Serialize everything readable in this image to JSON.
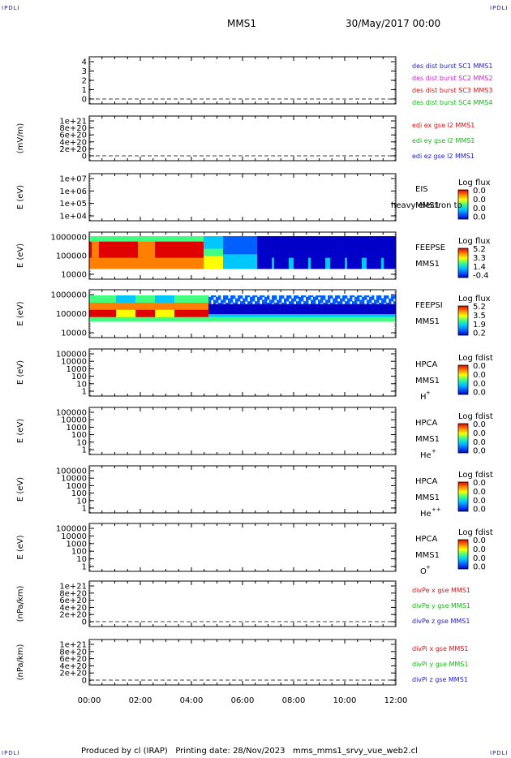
{
  "corner_tl": "IPDLI",
  "corner_tr": "IPDLI",
  "corner_bl": "IPDLI",
  "corner_br": "IPDLI",
  "header": {
    "title": "MMS1",
    "date": "30/May/2017 00:00"
  },
  "footer": "Produced by cl (IRAP)   Printing date: 28/Nov/2023   mms_mms1_srvy_vue_web2.cl",
  "colors": {
    "blue": "#1c1ccc",
    "magenta": "#cc22cc",
    "red": "#dd1111",
    "green": "#11bb11",
    "colorbar": [
      "#0000c8",
      "#0060ff",
      "#00c8ff",
      "#40ff80",
      "#ffff00",
      "#ff8000",
      "#e00000"
    ]
  },
  "chart_data": {
    "type": "heatmap",
    "x_ticks": [
      "00:00",
      "02:00",
      "04:00",
      "06:00",
      "08:00",
      "10:00",
      "12:00"
    ],
    "xlim_hours": [
      0,
      12
    ],
    "panels": [
      {
        "id": "dist",
        "ylabel": "",
        "ytick_labels": [
          "4",
          "3",
          "2",
          "1",
          "0"
        ],
        "series": [
          {
            "name": "des dist burst SC1 MMS1",
            "color": "#1c1ccc"
          },
          {
            "name": "des dist burst SC2 MMS2",
            "color": "#cc22cc"
          },
          {
            "name": "des dist burst SC3 MMS3",
            "color": "#dd1111"
          },
          {
            "name": "des dist burst SC4 MMS4",
            "color": "#11bb11"
          }
        ]
      },
      {
        "id": "edi",
        "ylabel": "(mV/m)",
        "ytick_labels": [
          "1e+21",
          "8e+20",
          "6e+20",
          "4e+20",
          "2e+20",
          "0"
        ],
        "series": [
          {
            "name": "edi ex gse l2 MMS1",
            "color": "#dd1111"
          },
          {
            "name": "edi ey gse l2 MMS1",
            "color": "#11bb11"
          },
          {
            "name": "edi ez gse l2 MMS1",
            "color": "#1c1ccc"
          }
        ]
      },
      {
        "id": "eis",
        "ylabel": "E (eV)",
        "ytick_labels": [
          "1e+07",
          "1e+06",
          "1e+05",
          "1e+04"
        ],
        "label_lines": [
          "EIS",
          "MMS1"
        ],
        "overlay_text": "heavy electron to",
        "colorbar": {
          "title": "Log flux",
          "ticks": [
            "0.0",
            "0.0",
            "0.0",
            "0.0"
          ]
        }
      },
      {
        "id": "feepse",
        "ylabel": "E (eV)",
        "ytick_labels": [
          "1000000",
          "100000",
          "10000"
        ],
        "label_lines": [
          "FEEPSE",
          "MMS1"
        ],
        "colorbar": {
          "title": "Log flux",
          "ticks": [
            "5.2",
            "3.3",
            "1.4",
            "-0.4"
          ]
        }
      },
      {
        "id": "feepsi",
        "ylabel": "E (eV)",
        "ytick_labels": [
          "1000000",
          "100000",
          "10000"
        ],
        "label_lines": [
          "FEEPSI",
          "MMS1"
        ],
        "colorbar": {
          "title": "Log flux",
          "ticks": [
            "5.2",
            "3.5",
            "1.9",
            "0.2"
          ]
        }
      },
      {
        "id": "hpca_h",
        "ylabel": "E (eV)",
        "ytick_labels": [
          "100000",
          "10000",
          "1000",
          "100",
          "10",
          "1"
        ],
        "label_lines": [
          "HPCA",
          "MMS1"
        ],
        "species": "H",
        "charge": "+",
        "colorbar": {
          "title": "Log fdist",
          "ticks": [
            "0.0",
            "0.0",
            "0.0",
            "0.0"
          ]
        }
      },
      {
        "id": "hpca_he",
        "ylabel": "E (eV)",
        "ytick_labels": [
          "100000",
          "10000",
          "1000",
          "100",
          "10",
          "1"
        ],
        "label_lines": [
          "HPCA",
          "MMS1"
        ],
        "species": "He",
        "charge": "+",
        "colorbar": {
          "title": "Log fdist",
          "ticks": [
            "0.0",
            "0.0",
            "0.0",
            "0.0"
          ]
        }
      },
      {
        "id": "hpca_he2",
        "ylabel": "E (eV)",
        "ytick_labels": [
          "100000",
          "10000",
          "1000",
          "100",
          "10",
          "1"
        ],
        "label_lines": [
          "HPCA",
          "MMS1"
        ],
        "species": "He",
        "charge": "++",
        "colorbar": {
          "title": "Log fdist",
          "ticks": [
            "0.0",
            "0.0",
            "0.0",
            "0.0"
          ]
        }
      },
      {
        "id": "hpca_o",
        "ylabel": "E (eV)",
        "ytick_labels": [
          "100000",
          "10000",
          "1000",
          "100",
          "10",
          "1"
        ],
        "label_lines": [
          "HPCA",
          "MMS1"
        ],
        "species": "O",
        "charge": "+",
        "colorbar": {
          "title": "Log fdist",
          "ticks": [
            "0.0",
            "0.0",
            "0.0",
            "0.0"
          ]
        }
      },
      {
        "id": "divpe",
        "ylabel": "(nPa/km)",
        "ytick_labels": [
          "1e+21",
          "8e+20",
          "6e+20",
          "4e+20",
          "2e+20",
          "0"
        ],
        "series": [
          {
            "name": "divPe x gse MMS1",
            "color": "#dd1111"
          },
          {
            "name": "divPe y gse MMS1",
            "color": "#11bb11"
          },
          {
            "name": "divPe z gse MMS1",
            "color": "#1c1ccc"
          }
        ]
      },
      {
        "id": "divpi",
        "ylabel": "(nPa/km)",
        "ytick_labels": [
          "1e+21",
          "8e+20",
          "6e+20",
          "4e+20",
          "2e+20",
          "0"
        ],
        "series": [
          {
            "name": "divPi x gse MMS1",
            "color": "#dd1111"
          },
          {
            "name": "divPi y gse MMS1",
            "color": "#11bb11"
          },
          {
            "name": "divPi z gse MMS1",
            "color": "#1c1ccc"
          }
        ]
      }
    ]
  }
}
